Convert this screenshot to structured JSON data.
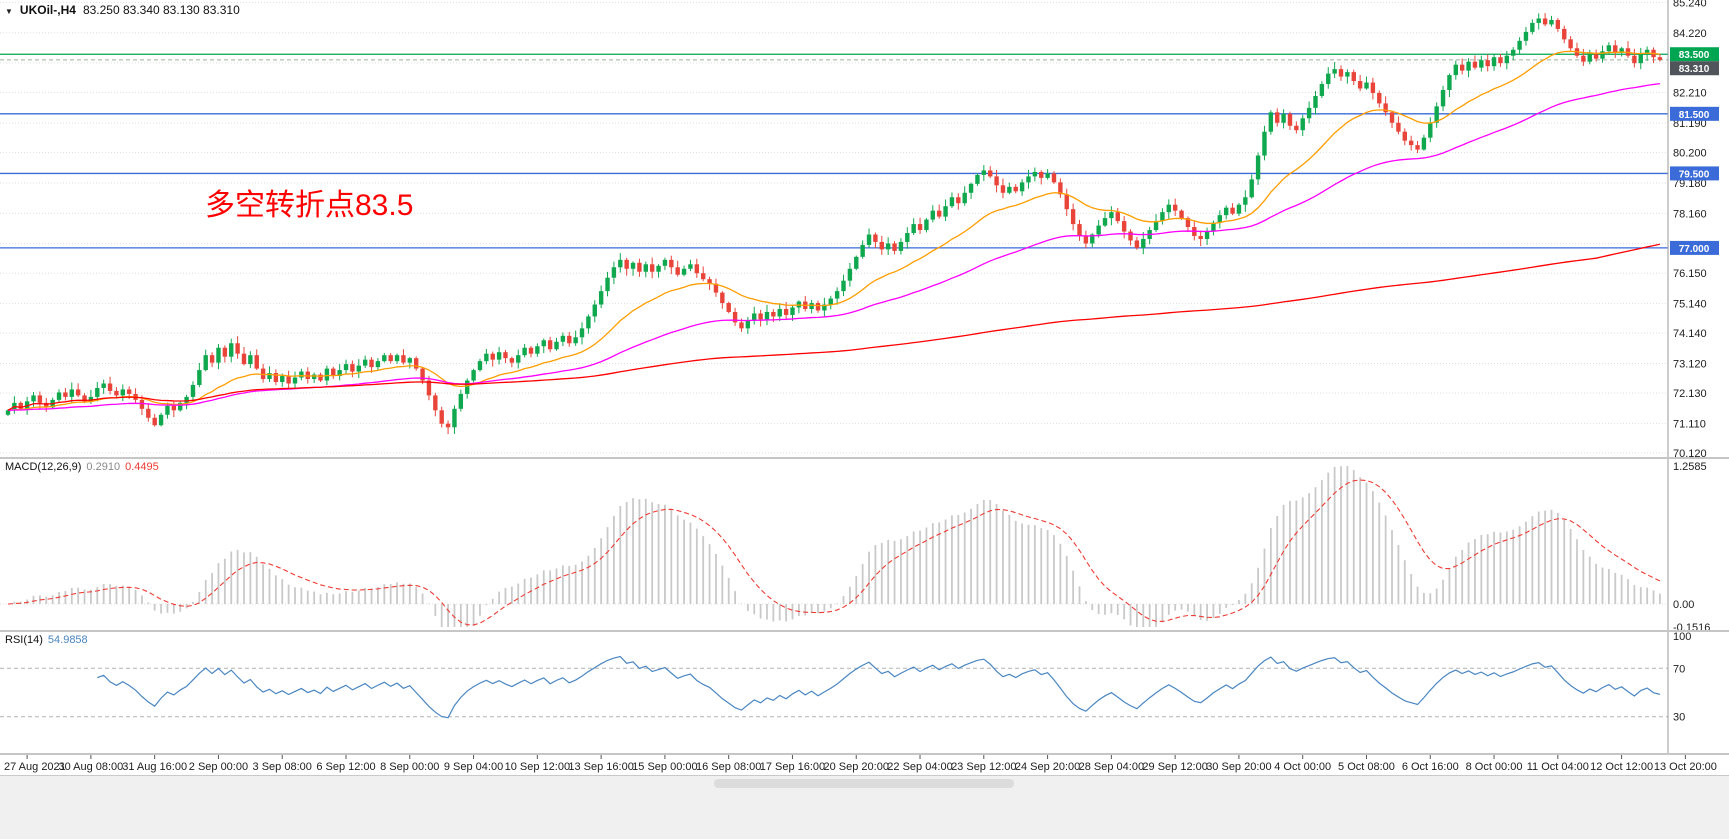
{
  "window": {
    "dropdown_icon": "▼",
    "symbol": "UKOil-,H4",
    "ohlc": "83.250 83.340 83.130 83.310"
  },
  "annotation": {
    "text": "多空转折点83.5"
  },
  "colors": {
    "bull": "#0fa84e",
    "bear": "#e8443a",
    "grid": "#dedede",
    "separator": "#9a9a9a",
    "axis_text": "#202020",
    "ma_fast": "#ff9d00",
    "ma_mid": "#ff00ff",
    "ma_slow": "#ff0000",
    "level_green": "#00a551",
    "level_blue": "#3a6bd8",
    "badge_current_bg": "#50555b",
    "badge_text": "#ffffff",
    "bid_line": "#9ab09a",
    "macd_hist": "#c9c9c9",
    "macd_signal": "#ee3b33",
    "macd_value_main": "#8a8a8a",
    "rsi_line": "#4a86c2",
    "rsi_level": "#b4b4b4",
    "annotation": "#ff0000",
    "tick": "#555555"
  },
  "indicators": {
    "macd": {
      "label": "MACD(12,26,9)",
      "value_main": "0.2910",
      "value_signal": "0.4495",
      "params": {
        "fast": 12,
        "slow": 26,
        "signal": 9
      },
      "axis_labels": {
        "max": "1.2585",
        "zero": "0.00",
        "min": "-0.1516"
      }
    },
    "rsi": {
      "label": "RSI(14)",
      "value": "54.9858",
      "period": 14,
      "levels": [
        70,
        30
      ],
      "axis_labels": [
        "100",
        "70",
        "30"
      ]
    }
  },
  "chart_data": {
    "type": "candlestick",
    "symbol": "UKOil-",
    "timeframe": "H4",
    "title": "UKOil-,H4 83.250 83.340 83.130 83.310",
    "price_axis": {
      "ylim": [
        70.05,
        85.32
      ],
      "grid_values": [
        85.24,
        84.22,
        83.21,
        82.21,
        81.19,
        80.2,
        79.18,
        78.16,
        77.15,
        76.15,
        75.14,
        74.14,
        73.12,
        72.13,
        71.11,
        70.12
      ],
      "labels": [
        {
          "v": 85.24,
          "t": "85.240"
        },
        {
          "v": 84.22,
          "t": "84.220"
        },
        {
          "v": 82.21,
          "t": "82.210"
        },
        {
          "v": 81.19,
          "t": "81.190"
        },
        {
          "v": 80.2,
          "t": "80.200"
        },
        {
          "v": 79.18,
          "t": "79.180"
        },
        {
          "v": 78.16,
          "t": "78.160"
        },
        {
          "v": 76.15,
          "t": "76.150"
        },
        {
          "v": 75.14,
          "t": "75.140"
        },
        {
          "v": 74.14,
          "t": "74.140"
        },
        {
          "v": 73.12,
          "t": "73.120"
        },
        {
          "v": 72.13,
          "t": "72.130"
        },
        {
          "v": 71.11,
          "t": "71.110"
        },
        {
          "v": 70.12,
          "t": "70.120"
        }
      ]
    },
    "levels": [
      {
        "price": 83.5,
        "label": "83.500",
        "style": "green"
      },
      {
        "price": 81.5,
        "label": "81.500",
        "style": "blue"
      },
      {
        "price": 79.5,
        "label": "79.500",
        "style": "blue"
      },
      {
        "price": 77.0,
        "label": "77.000",
        "style": "blue"
      }
    ],
    "current_price": {
      "value": 83.31,
      "label": "83.310"
    },
    "moving_averages": [
      {
        "name": "fast",
        "period": 20,
        "method": "ema",
        "color_key": "ma_fast"
      },
      {
        "name": "mid",
        "period": 60,
        "method": "ema",
        "color_key": "ma_mid"
      },
      {
        "name": "slow",
        "period": 250,
        "method": "sma",
        "color_key": "ma_slow"
      }
    ],
    "candles": {
      "first_open": 71.4,
      "wick_model": {
        "base": 0.04,
        "range": 0.2
      },
      "closes": [
        71.55,
        71.8,
        71.6,
        71.85,
        72.05,
        71.8,
        71.65,
        71.9,
        72.15,
        72.0,
        72.25,
        72.05,
        71.85,
        72.0,
        72.3,
        72.45,
        72.2,
        72.05,
        72.25,
        72.1,
        71.9,
        71.6,
        71.3,
        71.05,
        71.4,
        71.7,
        71.55,
        71.8,
        72.0,
        72.4,
        72.9,
        73.4,
        73.15,
        73.65,
        73.35,
        73.8,
        73.45,
        73.1,
        73.4,
        72.95,
        72.6,
        72.8,
        72.5,
        72.7,
        72.45,
        72.65,
        72.85,
        72.6,
        72.75,
        72.55,
        72.95,
        72.7,
        72.9,
        73.1,
        72.85,
        73.05,
        73.25,
        73.0,
        73.2,
        73.4,
        73.2,
        73.4,
        73.15,
        73.3,
        72.95,
        72.55,
        72.05,
        71.55,
        71.1,
        70.98,
        71.6,
        72.1,
        72.55,
        72.9,
        73.2,
        73.45,
        73.25,
        73.5,
        73.3,
        73.15,
        73.4,
        73.65,
        73.45,
        73.7,
        73.9,
        73.6,
        73.85,
        74.05,
        73.8,
        74.0,
        74.3,
        74.7,
        75.1,
        75.55,
        76.0,
        76.35,
        76.6,
        76.3,
        76.5,
        76.2,
        76.45,
        76.2,
        76.4,
        76.6,
        76.35,
        76.1,
        76.3,
        76.45,
        76.15,
        75.95,
        75.8,
        75.5,
        75.15,
        74.85,
        74.5,
        74.3,
        74.55,
        74.8,
        74.6,
        74.85,
        74.7,
        74.95,
        74.75,
        75.0,
        75.2,
        74.95,
        75.15,
        74.9,
        75.1,
        75.3,
        75.55,
        75.9,
        76.3,
        76.7,
        77.1,
        77.45,
        77.2,
        76.95,
        77.15,
        76.9,
        77.2,
        77.5,
        77.8,
        77.6,
        77.95,
        78.25,
        78.05,
        78.4,
        78.7,
        78.5,
        78.85,
        79.15,
        79.45,
        79.6,
        79.4,
        79.1,
        78.85,
        79.05,
        78.9,
        79.2,
        79.4,
        79.55,
        79.35,
        79.5,
        79.2,
        78.8,
        78.3,
        77.8,
        77.4,
        77.15,
        77.45,
        77.75,
        78.0,
        78.2,
        77.9,
        77.55,
        77.25,
        77.0,
        77.3,
        77.6,
        77.9,
        78.2,
        78.45,
        78.25,
        78.0,
        77.7,
        77.4,
        77.3,
        77.55,
        77.85,
        78.1,
        78.35,
        78.15,
        78.45,
        78.7,
        79.3,
        80.1,
        80.9,
        81.55,
        81.2,
        81.5,
        81.1,
        80.95,
        81.35,
        81.7,
        82.1,
        82.5,
        82.85,
        83.0,
        82.75,
        82.9,
        82.6,
        82.35,
        82.55,
        82.2,
        81.85,
        81.55,
        81.2,
        80.9,
        80.6,
        80.45,
        80.3,
        80.7,
        81.2,
        81.75,
        82.3,
        82.8,
        83.15,
        82.95,
        83.25,
        83.05,
        83.3,
        83.1,
        83.4,
        83.2,
        83.45,
        83.65,
        83.95,
        84.25,
        84.55,
        84.7,
        84.5,
        84.65,
        84.35,
        84.0,
        83.7,
        83.45,
        83.25,
        83.5,
        83.35,
        83.6,
        83.8,
        83.55,
        83.7,
        83.45,
        83.2,
        83.5,
        83.65,
        83.4,
        83.31
      ]
    },
    "time_labels": [
      "27 Aug 2021",
      "30 Aug 08:00",
      "31 Aug 16:00",
      "2 Sep 00:00",
      "3 Sep 08:00",
      "6 Sep 12:00",
      "8 Sep 00:00",
      "9 Sep 04:00",
      "10 Sep 12:00",
      "13 Sep 16:00",
      "15 Sep 00:00",
      "16 Sep 08:00",
      "17 Sep 16:00",
      "20 Sep 20:00",
      "22 Sep 04:00",
      "23 Sep 12:00",
      "24 Sep 20:00",
      "28 Sep 04:00",
      "29 Sep 12:00",
      "30 Sep 20:00",
      "4 Oct 00:00",
      "5 Oct 08:00",
      "6 Oct 16:00",
      "8 Oct 00:00",
      "11 Oct 04:00",
      "12 Oct 12:00",
      "13 Oct 20:00"
    ]
  }
}
